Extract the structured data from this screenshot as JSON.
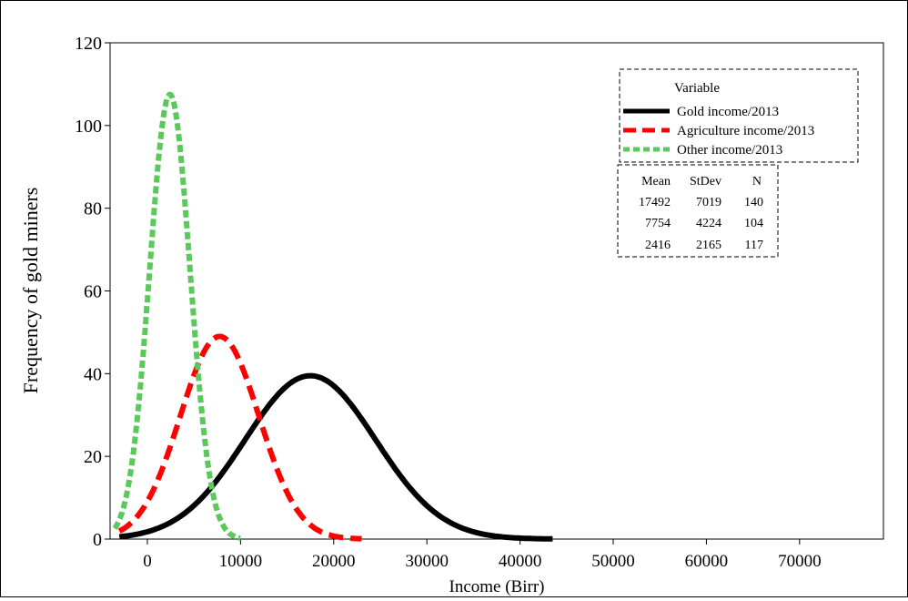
{
  "chart_data": {
    "type": "line",
    "title": "",
    "xlabel": "Income (Birr)",
    "ylabel": "Frequency of gold miners",
    "xlim": [
      -4000,
      79000
    ],
    "ylim": [
      0,
      120
    ],
    "xticks": [
      0,
      10000,
      20000,
      30000,
      40000,
      50000,
      60000,
      70000
    ],
    "yticks": [
      0,
      20,
      40,
      60,
      80,
      100,
      120
    ],
    "grid": false,
    "legend": {
      "title": "Variable",
      "placement": "top-right",
      "entries": [
        "Gold income/2013",
        "Agriculture income/2013",
        "Other income/2013"
      ]
    },
    "stats_table": {
      "headers": [
        "Mean",
        "StDev",
        "N"
      ],
      "rows": [
        [
          "17492",
          "7019",
          "140"
        ],
        [
          "7754",
          "4224",
          "104"
        ],
        [
          "2416",
          "2165",
          "117"
        ]
      ]
    },
    "series": [
      {
        "name": "Gold income/2013",
        "distribution": "normal",
        "mean": 17492,
        "stdev": 7019,
        "n": 140,
        "x_range": [
          -3000,
          43500
        ],
        "peak": 39.5,
        "color": "#000000",
        "style": "solid"
      },
      {
        "name": "Agriculture income/2013",
        "distribution": "normal",
        "mean": 7754,
        "stdev": 4224,
        "n": 104,
        "x_range": [
          -3000,
          23000
        ],
        "peak": 49,
        "color": "#ff0000",
        "style": "dashed"
      },
      {
        "name": "Other income/2013",
        "distribution": "normal",
        "mean": 2416,
        "stdev": 2165,
        "n": 117,
        "x_range": [
          -3500,
          10000
        ],
        "peak": 107.5,
        "color": "#5ac85a",
        "style": "dashed"
      }
    ]
  }
}
